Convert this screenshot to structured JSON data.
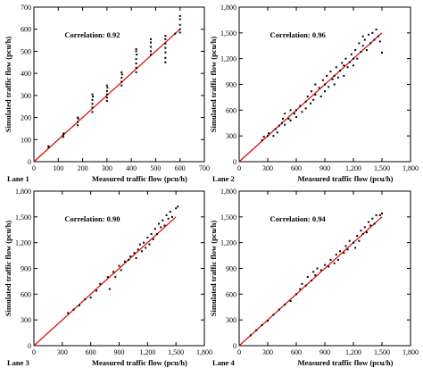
{
  "chart_data": [
    {
      "type": "scatter",
      "panel_label": "Lane 1",
      "xlabel": "Measured traffic flow  (pcu/h)",
      "ylabel": "Simulated traffic flow  (pcu/h)",
      "annotation": "Correlation: 0.92",
      "xlim": [
        0,
        700
      ],
      "ylim": [
        0,
        700
      ],
      "xticks": [
        0,
        100,
        200,
        300,
        400,
        500,
        600,
        700
      ],
      "yticks": [
        0,
        100,
        200,
        300,
        400,
        500,
        600,
        700
      ],
      "xtick_labels": [
        "0",
        "100",
        "200",
        "300",
        "400",
        "500",
        "600",
        "700"
      ],
      "ytick_labels": [
        "0",
        "100",
        "200",
        "300",
        "400",
        "500",
        "600",
        "700"
      ],
      "fit_line": {
        "x": [
          0,
          600
        ],
        "y": [
          0,
          600
        ],
        "color": "#e00000"
      },
      "points": [
        [
          60,
          65
        ],
        [
          60,
          70
        ],
        [
          120,
          112
        ],
        [
          120,
          120
        ],
        [
          122,
          128
        ],
        [
          180,
          165
        ],
        [
          180,
          180
        ],
        [
          182,
          195
        ],
        [
          180,
          200
        ],
        [
          240,
          225
        ],
        [
          240,
          245
        ],
        [
          240,
          262
        ],
        [
          240,
          280
        ],
        [
          242,
          295
        ],
        [
          240,
          305
        ],
        [
          300,
          275
        ],
        [
          300,
          290
        ],
        [
          300,
          305
        ],
        [
          300,
          320
        ],
        [
          302,
          335
        ],
        [
          300,
          345
        ],
        [
          360,
          345
        ],
        [
          360,
          362
        ],
        [
          360,
          380
        ],
        [
          362,
          395
        ],
        [
          360,
          405
        ],
        [
          420,
          405
        ],
        [
          420,
          425
        ],
        [
          420,
          445
        ],
        [
          420,
          465
        ],
        [
          422,
          485
        ],
        [
          420,
          500
        ],
        [
          420,
          510
        ],
        [
          480,
          485
        ],
        [
          480,
          500
        ],
        [
          480,
          520
        ],
        [
          480,
          540
        ],
        [
          480,
          555
        ],
        [
          540,
          450
        ],
        [
          540,
          470
        ],
        [
          540,
          495
        ],
        [
          540,
          515
        ],
        [
          540,
          535
        ],
        [
          540,
          555
        ],
        [
          540,
          570
        ],
        [
          580,
          580
        ],
        [
          600,
          600
        ],
        [
          600,
          620
        ],
        [
          600,
          645
        ],
        [
          600,
          660
        ],
        [
          600,
          585
        ]
      ]
    },
    {
      "type": "scatter",
      "panel_label": "Lane 2",
      "xlabel": "Measured traffic flow  (pcu/h)",
      "ylabel": "Simulated traffic flow  (pcu/h)",
      "annotation": "Correlation: 0.96",
      "xlim": [
        0,
        1800
      ],
      "ylim": [
        0,
        1800
      ],
      "xticks": [
        0,
        300,
        600,
        900,
        1200,
        1500,
        1800
      ],
      "yticks": [
        0,
        300,
        600,
        900,
        1200,
        1500,
        1800
      ],
      "xtick_labels": [
        "0",
        "300",
        "600",
        "900",
        "1,200",
        "1,500",
        "1,800"
      ],
      "ytick_labels": [
        "0",
        "300",
        "600",
        "900",
        "1,200",
        "1,500",
        "1,800"
      ],
      "fit_line": {
        "x": [
          0,
          1500
        ],
        "y": [
          0,
          1500
        ],
        "color": "#e00000"
      },
      "points": [
        [
          240,
          250
        ],
        [
          260,
          290
        ],
        [
          300,
          300
        ],
        [
          310,
          330
        ],
        [
          360,
          300
        ],
        [
          380,
          380
        ],
        [
          400,
          340
        ],
        [
          420,
          420
        ],
        [
          450,
          450
        ],
        [
          460,
          500
        ],
        [
          480,
          560
        ],
        [
          480,
          430
        ],
        [
          520,
          500
        ],
        [
          540,
          600
        ],
        [
          540,
          480
        ],
        [
          580,
          560
        ],
        [
          600,
          600
        ],
        [
          600,
          520
        ],
        [
          640,
          650
        ],
        [
          660,
          580
        ],
        [
          700,
          700
        ],
        [
          700,
          620
        ],
        [
          720,
          760
        ],
        [
          750,
          680
        ],
        [
          760,
          820
        ],
        [
          780,
          720
        ],
        [
          800,
          900
        ],
        [
          800,
          780
        ],
        [
          840,
          860
        ],
        [
          860,
          760
        ],
        [
          880,
          950
        ],
        [
          900,
          900
        ],
        [
          900,
          820
        ],
        [
          920,
          1000
        ],
        [
          940,
          870
        ],
        [
          960,
          1050
        ],
        [
          980,
          960
        ],
        [
          1000,
          1000
        ],
        [
          1000,
          900
        ],
        [
          1020,
          1100
        ],
        [
          1040,
          980
        ],
        [
          1060,
          1060
        ],
        [
          1080,
          1150
        ],
        [
          1100,
          1000
        ],
        [
          1100,
          1120
        ],
        [
          1120,
          1200
        ],
        [
          1140,
          1100
        ],
        [
          1160,
          1160
        ],
        [
          1180,
          1250
        ],
        [
          1200,
          1200
        ],
        [
          1200,
          1120
        ],
        [
          1220,
          1300
        ],
        [
          1240,
          1200
        ],
        [
          1260,
          1380
        ],
        [
          1280,
          1280
        ],
        [
          1300,
          1350
        ],
        [
          1300,
          1460
        ],
        [
          1320,
          1420
        ],
        [
          1340,
          1300
        ],
        [
          1360,
          1480
        ],
        [
          1380,
          1380
        ],
        [
          1400,
          1500
        ],
        [
          1420,
          1420
        ],
        [
          1440,
          1540
        ],
        [
          1460,
          1460
        ],
        [
          1480,
          1400
        ],
        [
          1500,
          1270
        ]
      ]
    },
    {
      "type": "scatter",
      "panel_label": "Lane 3",
      "xlabel": "Measured traffic flow  (pcu/h)",
      "ylabel": "Simulated traffic flow  (pcu/h)",
      "annotation": "Correlation: 0.90",
      "xlim": [
        0,
        1800
      ],
      "ylim": [
        0,
        1800
      ],
      "xticks": [
        0,
        300,
        600,
        900,
        1200,
        1500,
        1800
      ],
      "yticks": [
        0,
        300,
        600,
        900,
        1200,
        1500,
        1800
      ],
      "xtick_labels": [
        "0",
        "300",
        "600",
        "900",
        "1,200",
        "1,500",
        "1,800"
      ],
      "ytick_labels": [
        "0",
        "300",
        "600",
        "900",
        "1,200",
        "1,500",
        "1,800"
      ],
      "fit_line": {
        "x": [
          0,
          1500
        ],
        "y": [
          0,
          1500
        ],
        "color": "#e00000"
      },
      "points": [
        [
          360,
          380
        ],
        [
          420,
          420
        ],
        [
          480,
          470
        ],
        [
          540,
          540
        ],
        [
          600,
          560
        ],
        [
          660,
          640
        ],
        [
          700,
          720
        ],
        [
          780,
          800
        ],
        [
          800,
          660
        ],
        [
          840,
          860
        ],
        [
          860,
          800
        ],
        [
          900,
          930
        ],
        [
          920,
          880
        ],
        [
          960,
          980
        ],
        [
          1000,
          1000
        ],
        [
          1020,
          1040
        ],
        [
          1060,
          1080
        ],
        [
          1080,
          1020
        ],
        [
          1100,
          1120
        ],
        [
          1120,
          1180
        ],
        [
          1140,
          1100
        ],
        [
          1160,
          1200
        ],
        [
          1180,
          1140
        ],
        [
          1200,
          1260
        ],
        [
          1220,
          1180
        ],
        [
          1240,
          1300
        ],
        [
          1260,
          1240
        ],
        [
          1280,
          1360
        ],
        [
          1300,
          1300
        ],
        [
          1320,
          1420
        ],
        [
          1340,
          1380
        ],
        [
          1360,
          1460
        ],
        [
          1380,
          1400
        ],
        [
          1400,
          1520
        ],
        [
          1420,
          1480
        ],
        [
          1440,
          1560
        ],
        [
          1460,
          1500
        ],
        [
          1500,
          1600
        ],
        [
          1520,
          1620
        ]
      ]
    },
    {
      "type": "scatter",
      "panel_label": "Lane 4",
      "xlabel": "Measured traffic flow  (pcu/h)",
      "ylabel": "Simulated traffic flow  (pcu/h)",
      "annotation": "Correlation: 0.94",
      "xlim": [
        0,
        1800
      ],
      "ylim": [
        0,
        1800
      ],
      "xticks": [
        0,
        300,
        600,
        900,
        1200,
        1500,
        1800
      ],
      "yticks": [
        0,
        300,
        600,
        900,
        1200,
        1500,
        1800
      ],
      "xtick_labels": [
        "0",
        "300",
        "600",
        "900",
        "1,200",
        "1,500",
        "1,800"
      ],
      "ytick_labels": [
        "0",
        "300",
        "600",
        "900",
        "1,200",
        "1,500",
        "1,800"
      ],
      "fit_line": {
        "x": [
          0,
          1500
        ],
        "y": [
          0,
          1500
        ],
        "color": "#e00000"
      },
      "points": [
        [
          120,
          120
        ],
        [
          180,
          180
        ],
        [
          240,
          240
        ],
        [
          300,
          290
        ],
        [
          360,
          360
        ],
        [
          420,
          420
        ],
        [
          480,
          480
        ],
        [
          540,
          520
        ],
        [
          600,
          600
        ],
        [
          640,
          660
        ],
        [
          660,
          720
        ],
        [
          700,
          700
        ],
        [
          720,
          800
        ],
        [
          760,
          760
        ],
        [
          780,
          860
        ],
        [
          800,
          820
        ],
        [
          820,
          900
        ],
        [
          860,
          880
        ],
        [
          900,
          940
        ],
        [
          940,
          920
        ],
        [
          960,
          1000
        ],
        [
          1000,
          960
        ],
        [
          1020,
          1060
        ],
        [
          1040,
          1000
        ],
        [
          1060,
          1100
        ],
        [
          1100,
          1080
        ],
        [
          1120,
          1160
        ],
        [
          1140,
          1120
        ],
        [
          1160,
          1220
        ],
        [
          1200,
          1200
        ],
        [
          1220,
          1140
        ],
        [
          1240,
          1280
        ],
        [
          1260,
          1220
        ],
        [
          1280,
          1340
        ],
        [
          1300,
          1300
        ],
        [
          1320,
          1380
        ],
        [
          1340,
          1320
        ],
        [
          1360,
          1440
        ],
        [
          1380,
          1400
        ],
        [
          1400,
          1480
        ],
        [
          1420,
          1420
        ],
        [
          1440,
          1520
        ],
        [
          1480,
          1520
        ],
        [
          1500,
          1540
        ]
      ]
    }
  ]
}
